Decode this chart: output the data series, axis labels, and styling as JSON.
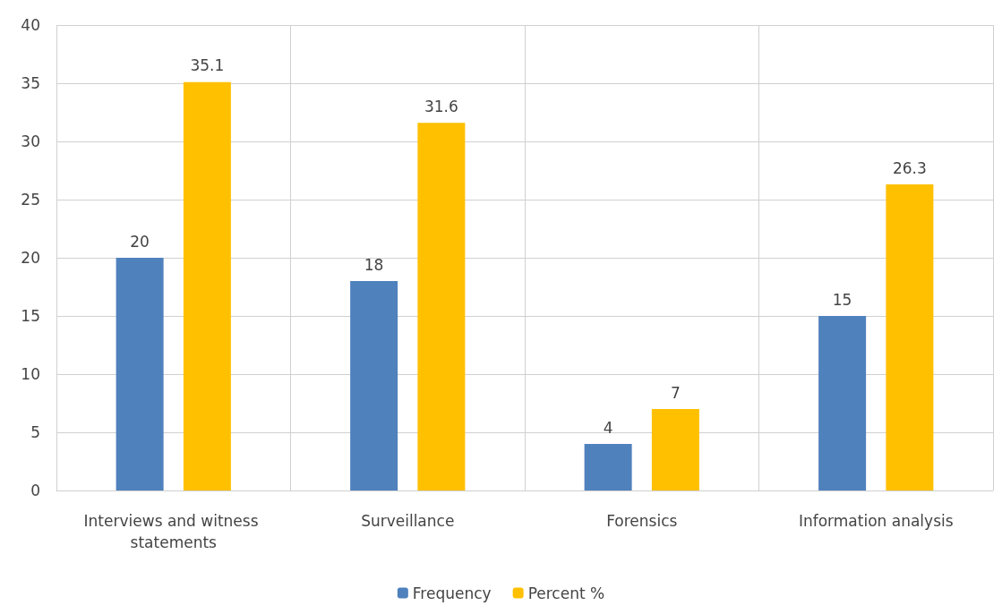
{
  "chart_data": {
    "type": "bar",
    "categories": [
      "Interviews and witness statements",
      "Surveillance",
      "Forensics",
      "Information analysis"
    ],
    "series": [
      {
        "name": "Frequency",
        "color": "#4f81bd",
        "values": [
          20,
          18,
          4,
          15
        ]
      },
      {
        "name": "Percent %",
        "color": "#ffc000",
        "values": [
          35.1,
          31.6,
          7,
          26.3
        ]
      }
    ],
    "ylim": [
      0,
      40
    ],
    "yticks": [
      0,
      5,
      10,
      15,
      20,
      25,
      30,
      35,
      40
    ],
    "grid": true,
    "legend": "bottom",
    "data_labels": true
  }
}
